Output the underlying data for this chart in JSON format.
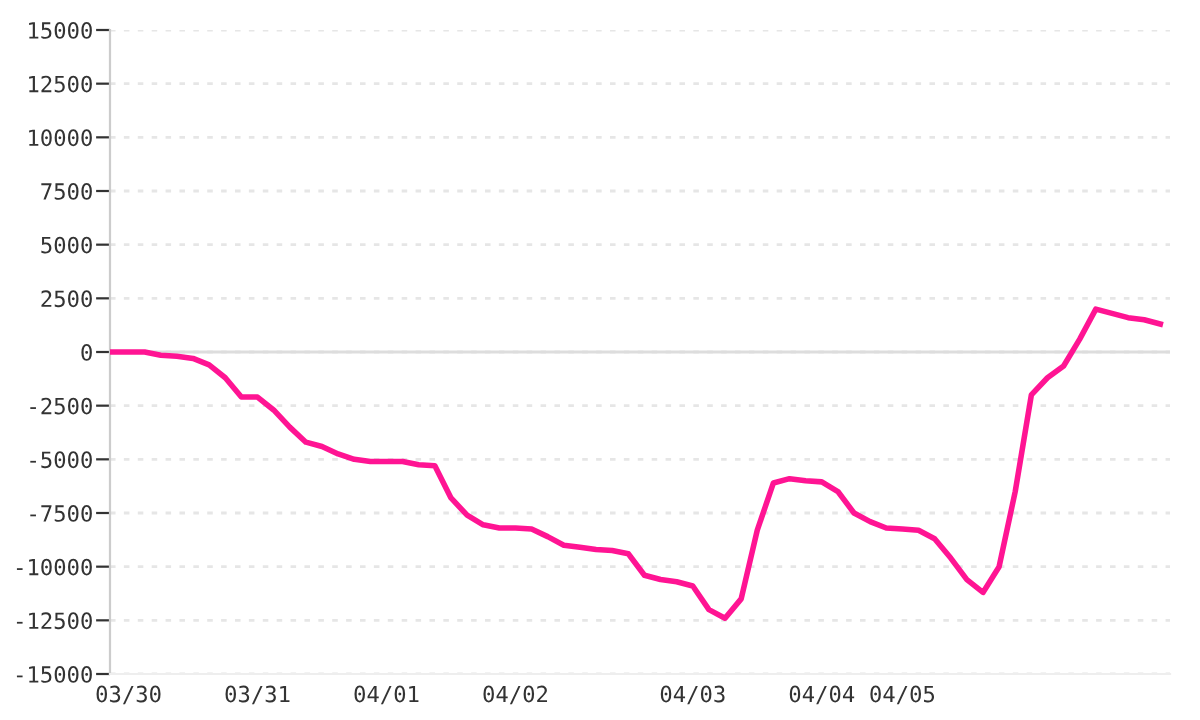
{
  "chart_data": {
    "type": "line",
    "categories": [
      null,
      "03/30",
      null,
      null,
      null,
      null,
      null,
      null,
      null,
      "03/31",
      null,
      null,
      null,
      null,
      null,
      null,
      null,
      "04/01",
      null,
      null,
      null,
      null,
      null,
      null,
      null,
      "04/02",
      null,
      null,
      null,
      null,
      null,
      null,
      null,
      null,
      null,
      null,
      "04/03",
      null,
      null,
      null,
      null,
      null,
      null,
      null,
      "04/04",
      null,
      null,
      null,
      null,
      "04/05",
      null,
      null,
      null,
      null,
      null,
      null,
      null,
      null,
      null,
      null,
      null,
      null,
      null,
      null,
      null,
      null
    ],
    "series": [
      {
        "color": "#ff1493",
        "values": [
          0,
          0,
          0,
          -150,
          -200,
          -300,
          -600,
          -1200,
          -2100,
          -2100,
          -2700,
          -3500,
          -4200,
          -4400,
          -4750,
          -5000,
          -5100,
          -5100,
          -5100,
          -5250,
          -5300,
          -6800,
          -7600,
          -8050,
          -8200,
          -8200,
          -8250,
          -8600,
          -9000,
          -9100,
          -9200,
          -9250,
          -9400,
          -10400,
          -10600,
          -10700,
          -10900,
          -12000,
          -12400,
          -11500,
          -8300,
          -6100,
          -5900,
          -6000,
          -6050,
          -6500,
          -7500,
          -7900,
          -8200,
          -8250,
          -8300,
          -8700,
          -9600,
          -10600,
          -11200,
          -10000,
          -6500,
          -2000,
          -1200,
          -650,
          600,
          2000,
          1800,
          1600,
          1500,
          1300
        ]
      }
    ],
    "ylim": [
      -15000,
      15000
    ],
    "yticks": [
      -15000,
      -12500,
      -10000,
      -7500,
      -5000,
      -2500,
      0,
      2500,
      5000,
      7500,
      10000,
      12500,
      15000
    ],
    "ref_lines": [
      {
        "axis": "y",
        "value": 0,
        "color": "#dddddd",
        "line_style": "solid"
      }
    ],
    "grid": "y",
    "legend": false,
    "marker": "none",
    "line_style": "solid"
  }
}
